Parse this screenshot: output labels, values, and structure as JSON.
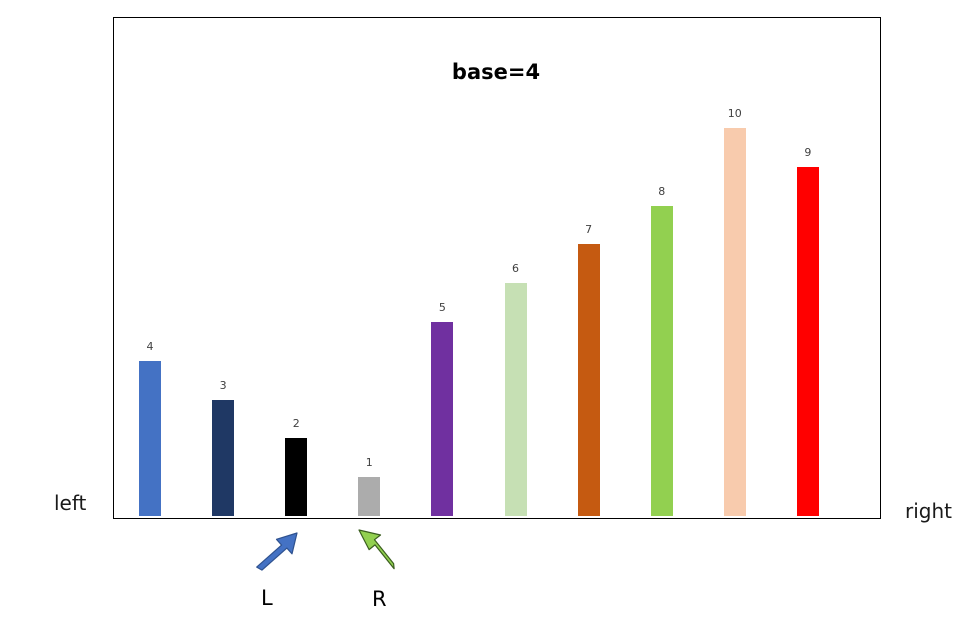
{
  "chart_data": {
    "type": "bar",
    "title": "base=4",
    "categories": [
      "",
      "",
      "",
      "",
      "",
      "",
      "",
      "",
      "",
      ""
    ],
    "values": [
      4,
      3,
      2,
      1,
      5,
      6,
      7,
      8,
      10,
      9
    ],
    "value_labels": [
      "4",
      "3",
      "2",
      "1",
      "5",
      "6",
      "7",
      "8",
      "10",
      "9"
    ],
    "colors": [
      "#4472c4",
      "#1f3864",
      "#000000",
      "#acacac",
      "#7030a0",
      "#c6e0b4",
      "#c55a11",
      "#92d050",
      "#f8cbad",
      "#ff0000"
    ],
    "ylim": [
      0,
      10
    ],
    "grid": false,
    "legend": "none"
  },
  "labels": {
    "left": "left",
    "right": "right",
    "pointer_l": "L",
    "pointer_r": "R"
  },
  "pointers": [
    {
      "name": "L",
      "color": "#4472c4",
      "points_to_index": 2
    },
    {
      "name": "R",
      "color": "#92d050",
      "points_to_index": 3
    }
  ]
}
